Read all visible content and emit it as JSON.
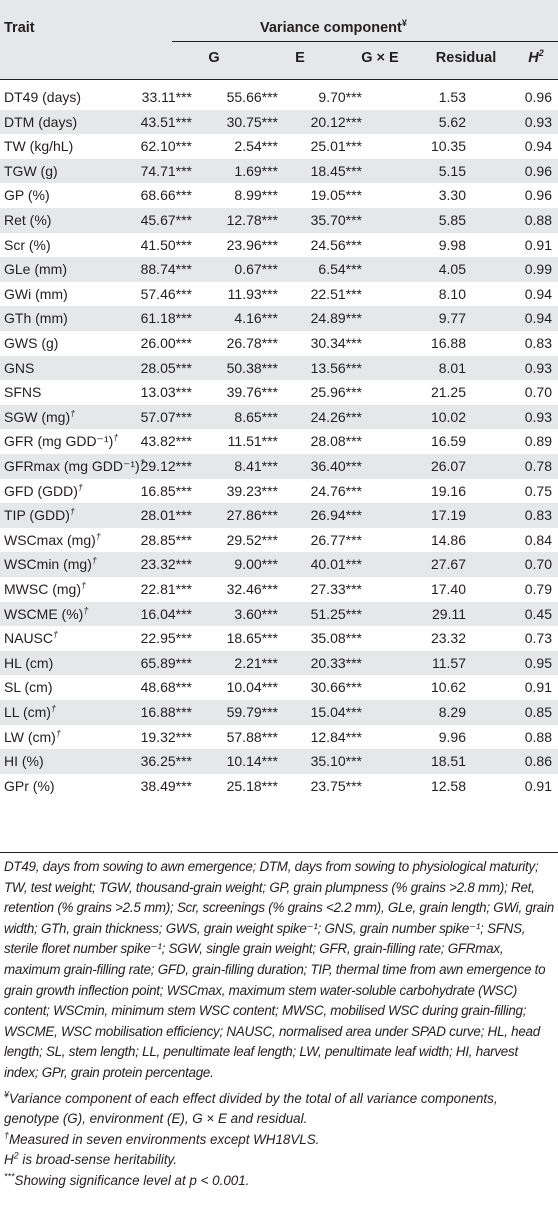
{
  "header": {
    "trait": "Trait",
    "variance_component": "Variance component",
    "yen_mark": "¥",
    "columns": [
      "G",
      "E",
      "G × E",
      "Residual"
    ],
    "h2_base": "H",
    "h2_exp": "2"
  },
  "rows": [
    {
      "trait": "DT49 (days)",
      "dagger": "",
      "g": "33.11***",
      "e": "55.66***",
      "gxe": "9.70***",
      "residual": "1.53",
      "h2": "0.96"
    },
    {
      "trait": "DTM (days)",
      "dagger": "",
      "g": "43.51***",
      "e": "30.75***",
      "gxe": "20.12***",
      "residual": "5.62",
      "h2": "0.93"
    },
    {
      "trait": "TW (kg/hL)",
      "dagger": "",
      "g": "62.10***",
      "e": "2.54***",
      "gxe": "25.01***",
      "residual": "10.35",
      "h2": "0.94"
    },
    {
      "trait": "TGW (g)",
      "dagger": "",
      "g": "74.71***",
      "e": "1.69***",
      "gxe": "18.45***",
      "residual": "5.15",
      "h2": "0.96"
    },
    {
      "trait": "GP (%)",
      "dagger": "",
      "g": "68.66***",
      "e": "8.99***",
      "gxe": "19.05***",
      "residual": "3.30",
      "h2": "0.96"
    },
    {
      "trait": "Ret (%)",
      "dagger": "",
      "g": "45.67***",
      "e": "12.78***",
      "gxe": "35.70***",
      "residual": "5.85",
      "h2": "0.88"
    },
    {
      "trait": "Scr (%)",
      "dagger": "",
      "g": "41.50***",
      "e": "23.96***",
      "gxe": "24.56***",
      "residual": "9.98",
      "h2": "0.91"
    },
    {
      "trait": "GLe (mm)",
      "dagger": "",
      "g": "88.74***",
      "e": "0.67***",
      "gxe": "6.54***",
      "residual": "4.05",
      "h2": "0.99"
    },
    {
      "trait": "GWi (mm)",
      "dagger": "",
      "g": "57.46***",
      "e": "11.93***",
      "gxe": "22.51***",
      "residual": "8.10",
      "h2": "0.94"
    },
    {
      "trait": "GTh (mm)",
      "dagger": "",
      "g": "61.18***",
      "e": "4.16***",
      "gxe": "24.89***",
      "residual": "9.77",
      "h2": "0.94"
    },
    {
      "trait": "GWS (g)",
      "dagger": "",
      "g": "26.00***",
      "e": "26.78***",
      "gxe": "30.34***",
      "residual": "16.88",
      "h2": "0.83"
    },
    {
      "trait": "GNS",
      "dagger": "",
      "g": "28.05***",
      "e": "50.38***",
      "gxe": "13.56***",
      "residual": "8.01",
      "h2": "0.93"
    },
    {
      "trait": "SFNS",
      "dagger": "",
      "g": "13.03***",
      "e": "39.76***",
      "gxe": "25.96***",
      "residual": "21.25",
      "h2": "0.70"
    },
    {
      "trait": "SGW (mg)",
      "dagger": "†",
      "g": "57.07***",
      "e": "8.65***",
      "gxe": "24.26***",
      "residual": "10.02",
      "h2": "0.93"
    },
    {
      "trait": "GFR (mg GDD⁻¹)",
      "dagger": "†",
      "g": "43.82***",
      "e": "11.51***",
      "gxe": "28.08***",
      "residual": "16.59",
      "h2": "0.89"
    },
    {
      "trait": "GFRmax (mg GDD⁻¹)",
      "dagger": "†",
      "g": "29.12***",
      "e": "8.41***",
      "gxe": "36.40***",
      "residual": "26.07",
      "h2": "0.78"
    },
    {
      "trait": "GFD (GDD)",
      "dagger": "†",
      "g": "16.85***",
      "e": "39.23***",
      "gxe": "24.76***",
      "residual": "19.16",
      "h2": "0.75"
    },
    {
      "trait": "TIP (GDD)",
      "dagger": "†",
      "g": "28.01***",
      "e": "27.86***",
      "gxe": "26.94***",
      "residual": "17.19",
      "h2": "0.83"
    },
    {
      "trait": "WSCmax (mg)",
      "dagger": "†",
      "g": "28.85***",
      "e": "29.52***",
      "gxe": "26.77***",
      "residual": "14.86",
      "h2": "0.84"
    },
    {
      "trait": "WSCmin (mg)",
      "dagger": "†",
      "g": "23.32***",
      "e": "9.00***",
      "gxe": "40.01***",
      "residual": "27.67",
      "h2": "0.70"
    },
    {
      "trait": "MWSC (mg)",
      "dagger": "†",
      "g": "22.81***",
      "e": "32.46***",
      "gxe": "27.33***",
      "residual": "17.40",
      "h2": "0.79"
    },
    {
      "trait": "WSCME (%)",
      "dagger": "†",
      "g": "16.04***",
      "e": "3.60***",
      "gxe": "51.25***",
      "residual": "29.11",
      "h2": "0.45"
    },
    {
      "trait": "NAUSC",
      "dagger": "†",
      "g": "22.95***",
      "e": "18.65***",
      "gxe": "35.08***",
      "residual": "23.32",
      "h2": "0.73"
    },
    {
      "trait": "HL (cm)",
      "dagger": "",
      "g": "65.89***",
      "e": "2.21***",
      "gxe": "20.33***",
      "residual": "11.57",
      "h2": "0.95"
    },
    {
      "trait": "SL (cm)",
      "dagger": "",
      "g": "48.68***",
      "e": "10.04***",
      "gxe": "30.66***",
      "residual": "10.62",
      "h2": "0.91"
    },
    {
      "trait": "LL (cm)",
      "dagger": "†",
      "g": "16.88***",
      "e": "59.79***",
      "gxe": "15.04***",
      "residual": "8.29",
      "h2": "0.85"
    },
    {
      "trait": "LW (cm)",
      "dagger": "†",
      "g": "19.32***",
      "e": "57.88***",
      "gxe": "12.84***",
      "residual": "9.96",
      "h2": "0.88"
    },
    {
      "trait": "HI (%)",
      "dagger": "",
      "g": "36.25***",
      "e": "10.14***",
      "gxe": "35.10***",
      "residual": "18.51",
      "h2": "0.86"
    },
    {
      "trait": "GPr (%)",
      "dagger": "",
      "g": "38.49***",
      "e": "25.18***",
      "gxe": "23.75***",
      "residual": "12.58",
      "h2": "0.91"
    }
  ],
  "notes": {
    "abbreviations": "DT49, days from sowing to awn emergence; DTM, days from sowing to physiological maturity; TW, test weight; TGW, thousand-grain weight; GP, grain plumpness (% grains >2.8 mm); Ret, retention (% grains >2.5 mm); Scr, screenings (% grains <2.2 mm), GLe, grain length; GWi, grain width; GTh, grain thickness; GWS, grain weight spike⁻¹; GNS, grain number spike⁻¹; SFNS, sterile floret number spike⁻¹; SGW, single grain weight; GFR, grain-filling rate; GFRmax, maximum grain-filling rate; GFD, grain-filling duration; TIP, thermal time from awn emergence to grain growth inflection point; WSCmax, maximum stem water-soluble carbohydrate (WSC) content; WSCmin, minimum stem WSC content; MWSC, mobilised WSC during grain-filling; WSCME, WSC mobilisation efficiency; NAUSC, normalised area under SPAD curve; HL, head length; SL, stem length; LL, penultimate leaf length; LW, penultimate leaf width; HI, harvest index; GPr, grain protein percentage.",
    "yen_mark": "¥",
    "variance_component": "Variance component of each effect divided by the total of all variance components, genotype (G), environment (E), G × E and residual.",
    "dagger_mark": "†",
    "measured": "Measured in seven environments except WH18VLS.",
    "h2_base": "H",
    "h2_exp": "2",
    "h2_text": " is broad-sense heritability.",
    "sig_mark": "***",
    "significance": "Showing significance level at p < 0.001."
  }
}
